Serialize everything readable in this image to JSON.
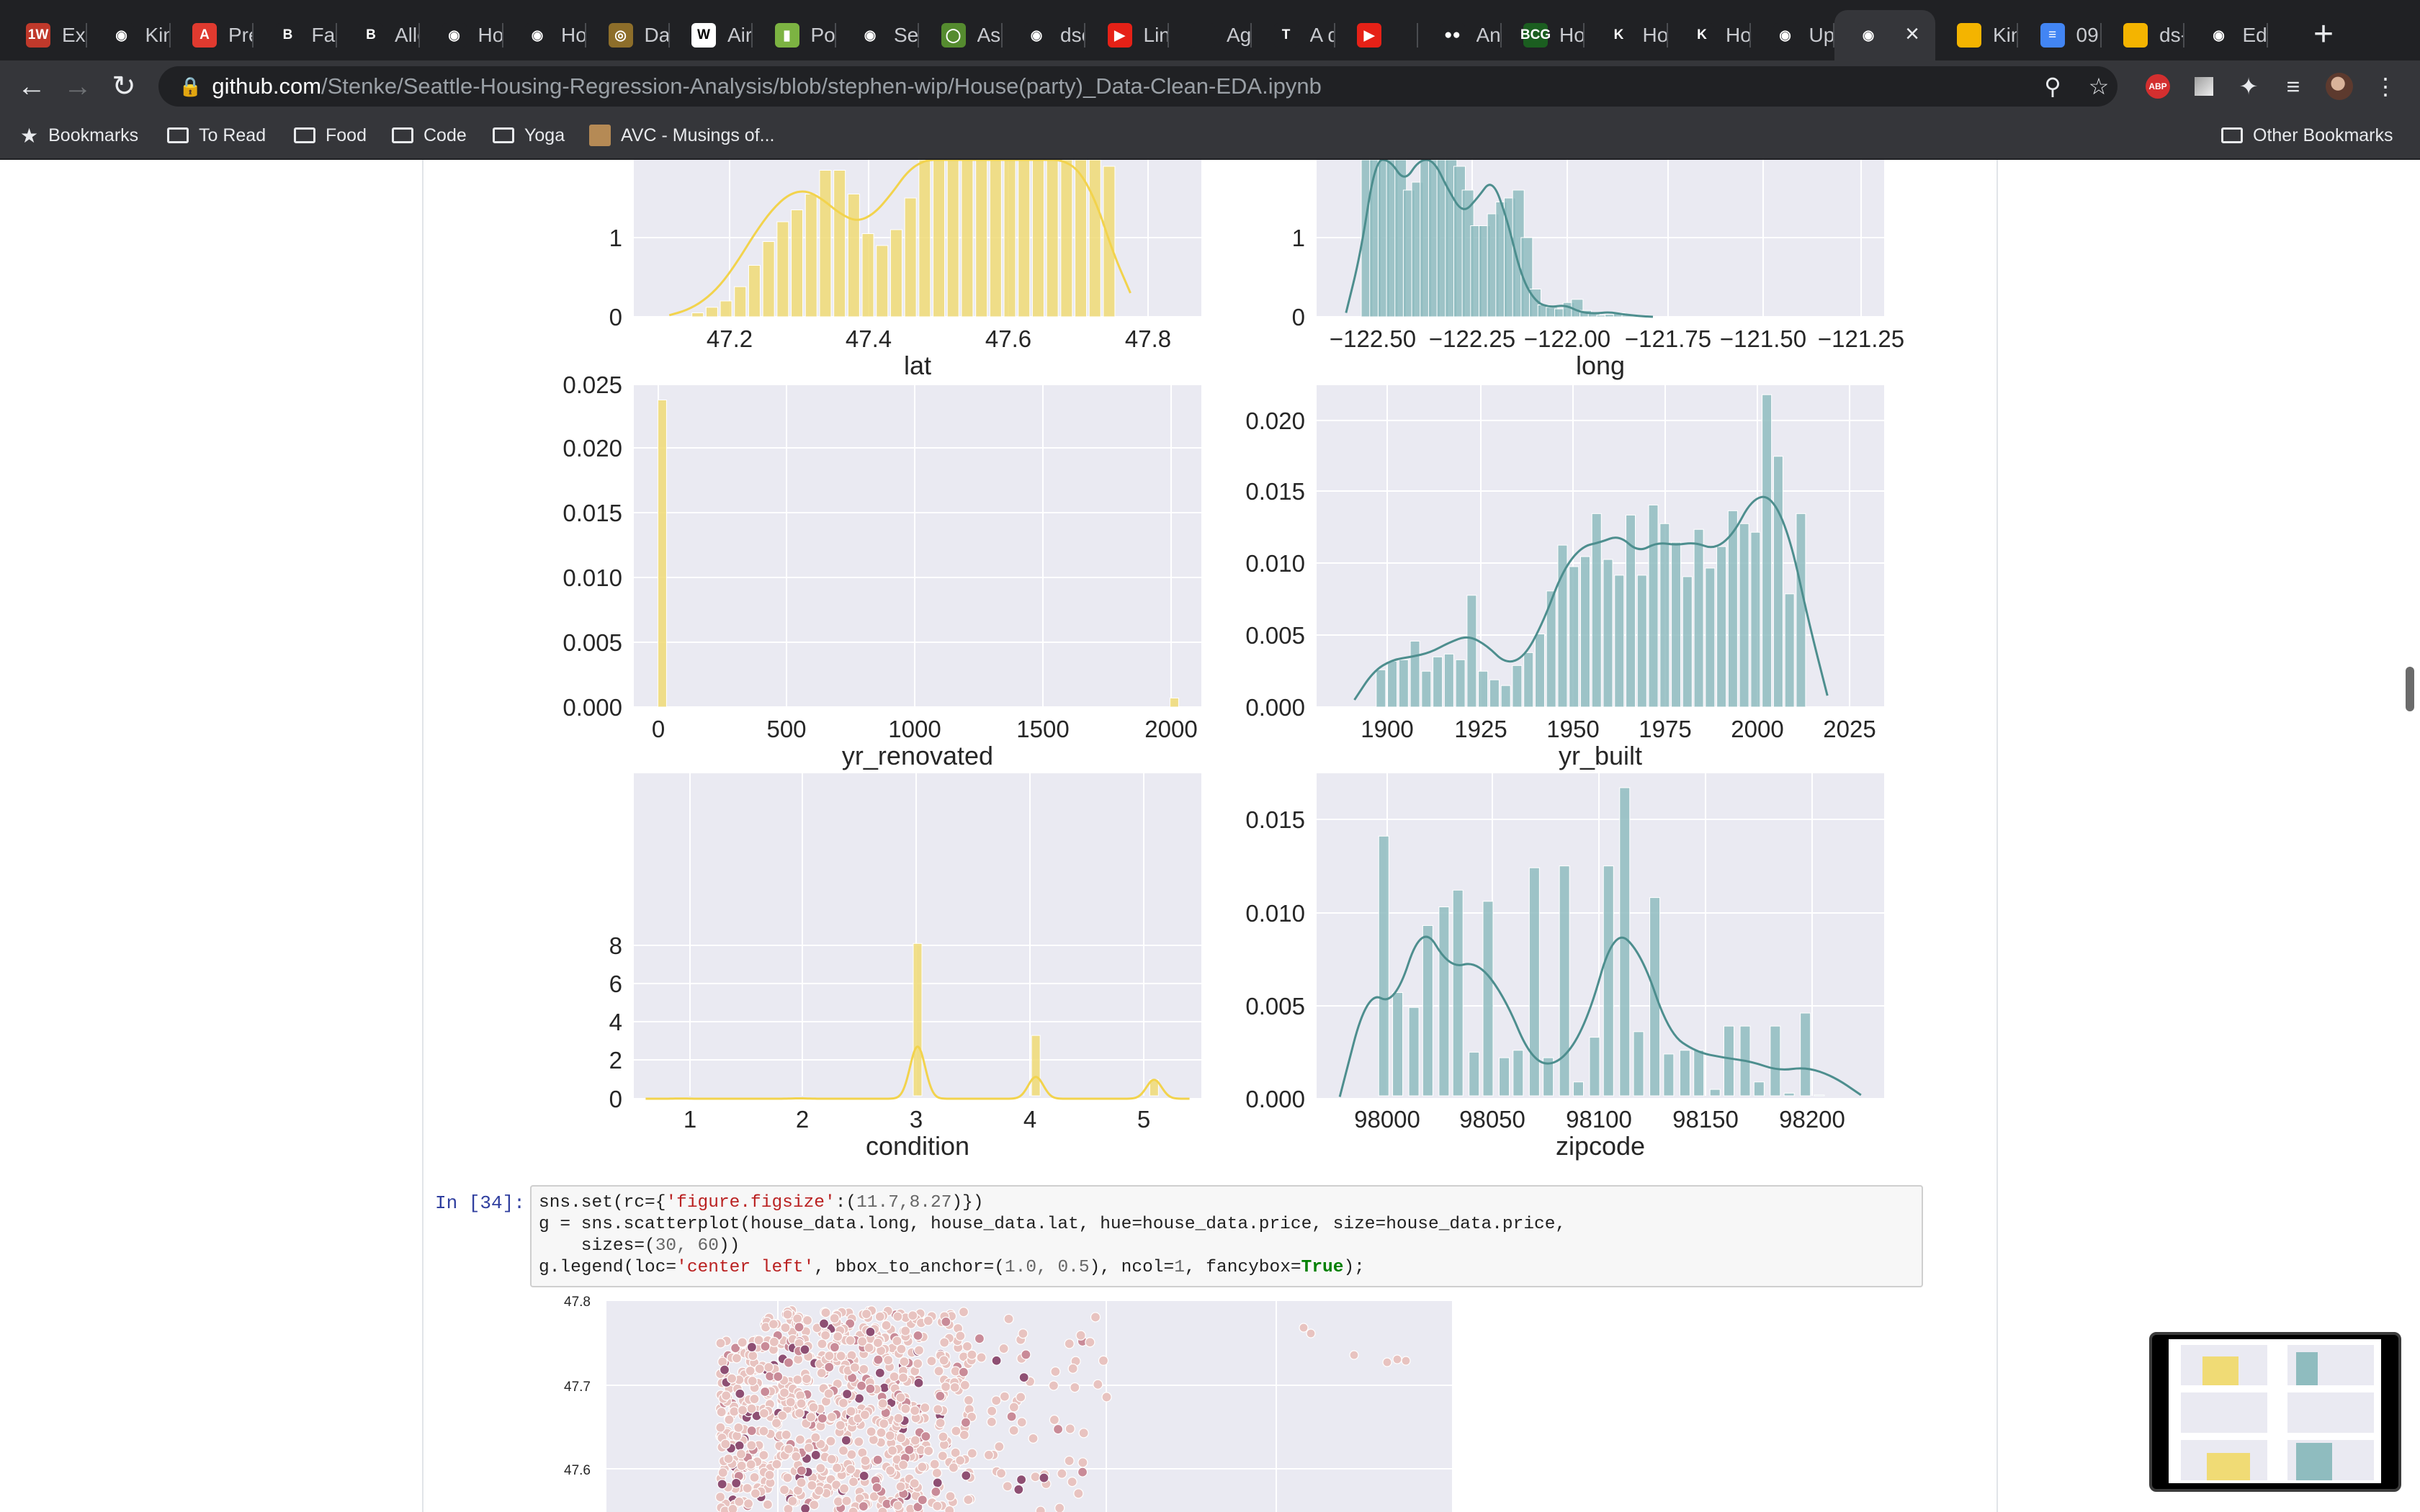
{
  "browser": {
    "tabs": [
      {
        "title": "Exp",
        "icon": "1w-icon",
        "color": "#c0392b",
        "glyph": "1W"
      },
      {
        "title": "Kin",
        "icon": "github-icon",
        "color": "#202124",
        "glyph": "◉"
      },
      {
        "title": "Pre",
        "icon": "adobe-icon",
        "color": "#e03a2f",
        "glyph": "A"
      },
      {
        "title": "Fac",
        "icon": "b-icon",
        "color": "#202124",
        "glyph": "B"
      },
      {
        "title": "Alle",
        "icon": "b-icon",
        "color": "#202124",
        "glyph": "B"
      },
      {
        "title": "Hou",
        "icon": "github-icon",
        "color": "#202124",
        "glyph": "◉"
      },
      {
        "title": "Hou",
        "icon": "github-icon",
        "color": "#202124",
        "glyph": "◉"
      },
      {
        "title": "Dat",
        "icon": "seal-icon",
        "color": "#8d6e2a",
        "glyph": "◎"
      },
      {
        "title": "Airl",
        "icon": "wsj-icon",
        "color": "#ffffff",
        "glyph": "W"
      },
      {
        "title": "Pol",
        "icon": "bottle-icon",
        "color": "#7cb342",
        "glyph": "▮"
      },
      {
        "title": "Sea",
        "icon": "github-icon",
        "color": "#202124",
        "glyph": "◉"
      },
      {
        "title": "Ass",
        "icon": "circle-icon",
        "color": "#558b2f",
        "glyph": "◯"
      },
      {
        "title": "dsc",
        "icon": "github-icon",
        "color": "#202124",
        "glyph": "◉"
      },
      {
        "title": "Lin",
        "icon": "youtube-icon",
        "color": "#e62117",
        "glyph": "▶"
      },
      {
        "title": "Age",
        "icon": "blank-icon",
        "color": "#202124",
        "glyph": ""
      },
      {
        "title": "A q",
        "icon": "t-icon",
        "color": "#202124",
        "glyph": "T"
      },
      {
        "title": "",
        "icon": "youtube-icon",
        "color": "#e62117",
        "glyph": "▶"
      },
      {
        "title": "An",
        "icon": "medium-icon",
        "color": "#202124",
        "glyph": "●●"
      },
      {
        "title": "Hov",
        "icon": "bcg-icon",
        "color": "#1b5e20",
        "glyph": "BCG"
      },
      {
        "title": "Ho",
        "icon": "k-icon",
        "color": "#202124",
        "glyph": "K"
      },
      {
        "title": "Ho",
        "icon": "k-icon",
        "color": "#202124",
        "glyph": "K"
      },
      {
        "title": "Upl",
        "icon": "github-icon",
        "color": "#202124",
        "glyph": "◉"
      },
      {
        "title": "",
        "icon": "github-icon",
        "color": "#35363a",
        "glyph": "◉"
      },
      {
        "title": "Kin",
        "icon": "slides-icon",
        "color": "#f4b400",
        "glyph": ""
      },
      {
        "title": "09",
        "icon": "docs-icon",
        "color": "#4285f4",
        "glyph": "≡"
      },
      {
        "title": "ds-",
        "icon": "slides-icon",
        "color": "#f4b400",
        "glyph": ""
      },
      {
        "title": "Edi",
        "icon": "github-icon",
        "color": "#202124",
        "glyph": "◉"
      }
    ],
    "url_host": "github.com",
    "url_path": "/Stenke/Seattle-Housing-Regression-Analysis/blob/stephen-wip/House(party)_Data-Clean-EDA.ipynb",
    "bookmarks": [
      "Bookmarks",
      "To Read",
      "Food",
      "Code",
      "Yoga",
      "AVC - Musings of..."
    ],
    "other_bookmarks": "Other Bookmarks",
    "abp_label": "ABP"
  },
  "notebook": {
    "cell_prompt": "In [34]:",
    "code": {
      "line1_a": "sns.set(rc={",
      "line1_str": "'figure.figsize'",
      "line1_b": ":(",
      "line1_num": "11.7,8.27",
      "line1_c": ")})",
      "line2": "g = sns.scatterplot(house_data.long, house_data.lat, hue=house_data.price, size=house_data.price,",
      "line3_a": "    sizes=(",
      "line3_num": "30, 60",
      "line3_b": "))",
      "line4_a": "g.legend(loc=",
      "line4_str": "'center left'",
      "line4_b": ", bbox_to_anchor=(",
      "line4_num": "1.0, 0.5",
      "line4_c": "), ncol=",
      "line4_num2": "1",
      "line4_d": ", fancybox=",
      "line4_kw": "True",
      "line4_e": ");"
    }
  },
  "chart_data": [
    {
      "type": "histogram",
      "name": "lat",
      "xlabel": "lat",
      "color": "#f0db75",
      "xticks": [
        "47.2",
        "47.4",
        "47.6",
        "47.8"
      ],
      "yticks": [
        "0",
        "1",
        "2"
      ],
      "xlim": [
        47.1,
        47.9
      ],
      "ylim": [
        0,
        2
      ],
      "bins_center": [
        47.19,
        47.21,
        47.23,
        47.25,
        47.27,
        47.29,
        47.31,
        47.33,
        47.35,
        47.37,
        47.39,
        47.41,
        47.43,
        47.45,
        47.47,
        47.49,
        47.51,
        47.53,
        47.55,
        47.57,
        47.59,
        47.61,
        47.63,
        47.65,
        47.67,
        47.69,
        47.71,
        47.73,
        47.75,
        47.77
      ],
      "values": [
        0.05,
        0.12,
        0.2,
        0.38,
        0.65,
        0.95,
        1.2,
        1.35,
        1.55,
        1.85,
        1.85,
        1.55,
        1.05,
        0.9,
        1.1,
        1.5,
        2.1,
        2.2,
        2.1,
        2.2,
        2.1,
        2.2,
        2.15,
        2.2,
        2.15,
        2.1,
        2.2,
        2.05,
        2.1,
        1.9
      ],
      "kde": [
        0.02,
        0.08,
        0.2,
        0.4,
        0.7,
        1.05,
        1.35,
        1.55,
        1.6,
        1.48,
        1.3,
        1.2,
        1.3,
        1.55,
        1.85,
        2.05,
        2.15,
        2.1,
        2.0,
        2.05,
        2.1,
        2.15,
        2.1,
        2.0,
        1.85,
        1.45,
        0.8,
        0.3
      ]
    },
    {
      "type": "histogram",
      "name": "long",
      "xlabel": "long",
      "color": "#8fbcbf",
      "xticks": [
        "−122.50",
        "−122.25",
        "−122.00",
        "−121.75",
        "−121.50",
        "−121.25"
      ],
      "yticks": [
        "0",
        "1",
        "2"
      ],
      "xlim": [
        -122.55,
        -121.2
      ],
      "ylim": [
        0,
        2
      ],
      "bins_center": [
        -122.43,
        -122.41,
        -122.39,
        -122.37,
        -122.35,
        -122.33,
        -122.31,
        -122.29,
        -122.27,
        -122.25,
        -122.23,
        -122.21,
        -122.19,
        -122.17,
        -122.15,
        -122.13,
        -122.11,
        -122.09,
        -122.07,
        -122.05,
        -122.03,
        -122.01,
        -121.99,
        -121.97,
        -121.95,
        -121.93,
        -121.91,
        -121.89,
        -121.87,
        -121.85,
        -121.83,
        -121.81
      ],
      "values": [
        2.2,
        2.2,
        2.2,
        2.2,
        2.2,
        1.6,
        1.7,
        2.2,
        2.2,
        2.2,
        2.1,
        1.9,
        1.6,
        1.15,
        1.15,
        1.3,
        1.45,
        1.5,
        1.6,
        1.0,
        0.35,
        0.15,
        0.12,
        0.1,
        0.18,
        0.22,
        0.08,
        0.04,
        0.02,
        0.03,
        0.05,
        0.02
      ],
      "kde": [
        0.05,
        0.8,
        2.2,
        2.2,
        1.7,
        2.2,
        2.2,
        1.6,
        1.3,
        1.5,
        1.75,
        1.25,
        0.5,
        0.18,
        0.12,
        0.15,
        0.06,
        0.04,
        0.06,
        0.03,
        0.01,
        0.0
      ]
    },
    {
      "type": "histogram",
      "name": "yr_renovated",
      "xlabel": "yr_renovated",
      "color": "#f0db75",
      "xticks": [
        "0",
        "500",
        "1000",
        "1500",
        "2000"
      ],
      "yticks": [
        "0.000",
        "0.005",
        "0.010",
        "0.015",
        "0.020",
        "0.025"
      ],
      "xlim": [
        -100,
        2100
      ],
      "ylim": [
        0,
        0.025
      ],
      "bins_center": [
        10,
        1995
      ],
      "values": [
        0.0238,
        0.0007
      ]
    },
    {
      "type": "histogram",
      "name": "yr_built",
      "xlabel": "yr_built",
      "color": "#8fbcbf",
      "xticks": [
        "1900",
        "1925",
        "1950",
        "1975",
        "2000",
        "2025"
      ],
      "yticks": [
        "0.000",
        "0.005",
        "0.010",
        "0.015",
        "0.020"
      ],
      "xlim": [
        1885,
        2035
      ],
      "ylim": [
        0,
        0.022
      ],
      "bins_center": [
        1902,
        1905,
        1908,
        1911,
        1914,
        1917,
        1920,
        1923,
        1926,
        1929,
        1932,
        1935,
        1938,
        1941,
        1944,
        1947,
        1950,
        1953,
        1956,
        1959,
        1962,
        1965,
        1968,
        1971,
        1974,
        1977,
        1980,
        1983,
        1986,
        1989,
        1992,
        1995,
        1998,
        2001,
        2004,
        2007,
        2010,
        2013
      ],
      "values": [
        0.0026,
        0.0032,
        0.0033,
        0.0046,
        0.0025,
        0.0035,
        0.0037,
        0.0033,
        0.0078,
        0.0025,
        0.0019,
        0.0015,
        0.0029,
        0.0038,
        0.0051,
        0.0081,
        0.0113,
        0.0098,
        0.0105,
        0.0135,
        0.0103,
        0.0092,
        0.0134,
        0.0092,
        0.0141,
        0.0128,
        0.0115,
        0.0091,
        0.0124,
        0.0097,
        0.0112,
        0.0137,
        0.0128,
        0.0122,
        0.0218,
        0.0175,
        0.0079,
        0.0135
      ],
      "kde": [
        0.0005,
        0.0025,
        0.0033,
        0.0035,
        0.0038,
        0.0045,
        0.005,
        0.0043,
        0.003,
        0.0035,
        0.006,
        0.0095,
        0.0112,
        0.0115,
        0.012,
        0.0108,
        0.0115,
        0.0113,
        0.0115,
        0.011,
        0.012,
        0.0145,
        0.0148,
        0.012,
        0.006,
        0.0008
      ]
    },
    {
      "type": "histogram",
      "name": "condition",
      "xlabel": "condition",
      "color": "#f0db75",
      "xticks": [
        "1",
        "2",
        "3",
        "4",
        "5"
      ],
      "yticks": [
        "0",
        "2",
        "4",
        "6",
        "8"
      ],
      "xlim": [
        0.6,
        5.4
      ],
      "ylim": [
        0,
        8.3
      ],
      "bins_center": [
        1,
        2,
        3,
        4,
        5
      ],
      "values": [
        0.02,
        0.05,
        8.1,
        3.3,
        1.0
      ],
      "kde": [
        0.01,
        0.02,
        0.05,
        2.75,
        1.15,
        1.0
      ]
    },
    {
      "type": "histogram",
      "name": "zipcode",
      "xlabel": "zipcode",
      "color": "#8fbcbf",
      "xticks": [
        "98000",
        "98050",
        "98100",
        "98150",
        "98200"
      ],
      "yticks": [
        "0.000",
        "0.005",
        "0.010",
        "0.015"
      ],
      "xlim": [
        97975,
        98220
      ],
      "ylim": [
        0,
        0.0165
      ],
      "bins_center": [
        98004,
        98010,
        98017,
        98023,
        98030,
        98036,
        98043,
        98049,
        98056,
        98062,
        98069,
        98075,
        98082,
        98088,
        98095,
        98101,
        98108,
        98114,
        98121,
        98127,
        98134,
        98140,
        98147,
        98153,
        98160,
        98166,
        98173,
        98179,
        98186,
        98192,
        98199
      ],
      "values": [
        0.0141,
        0.0057,
        0.0049,
        0.0093,
        0.0103,
        0.0112,
        0.0025,
        0.0106,
        0.0022,
        0.0026,
        0.0124,
        0.0022,
        0.0125,
        0.0009,
        0.0033,
        0.0125,
        0.0167,
        0.0036,
        0.0108,
        0.0024,
        0.0026,
        0.0026,
        0.0005,
        0.0039,
        0.0039,
        0.0009,
        0.0039,
        0.0003,
        0.0046,
        0.0002,
        0.0001
      ],
      "kde": [
        0.0001,
        0.0058,
        0.005,
        0.0095,
        0.007,
        0.0074,
        0.0055,
        0.002,
        0.0018,
        0.004,
        0.0092,
        0.0078,
        0.0035,
        0.0025,
        0.0022,
        0.002,
        0.0015,
        0.0017,
        0.0012,
        0.0002
      ]
    },
    {
      "type": "scatter",
      "name": "lat-long-price",
      "yticks": [
        "47.8",
        "47.7",
        "47.6"
      ],
      "ylim": [
        47.55,
        47.8
      ],
      "xlim": [
        -122.52,
        -121.3
      ]
    }
  ]
}
